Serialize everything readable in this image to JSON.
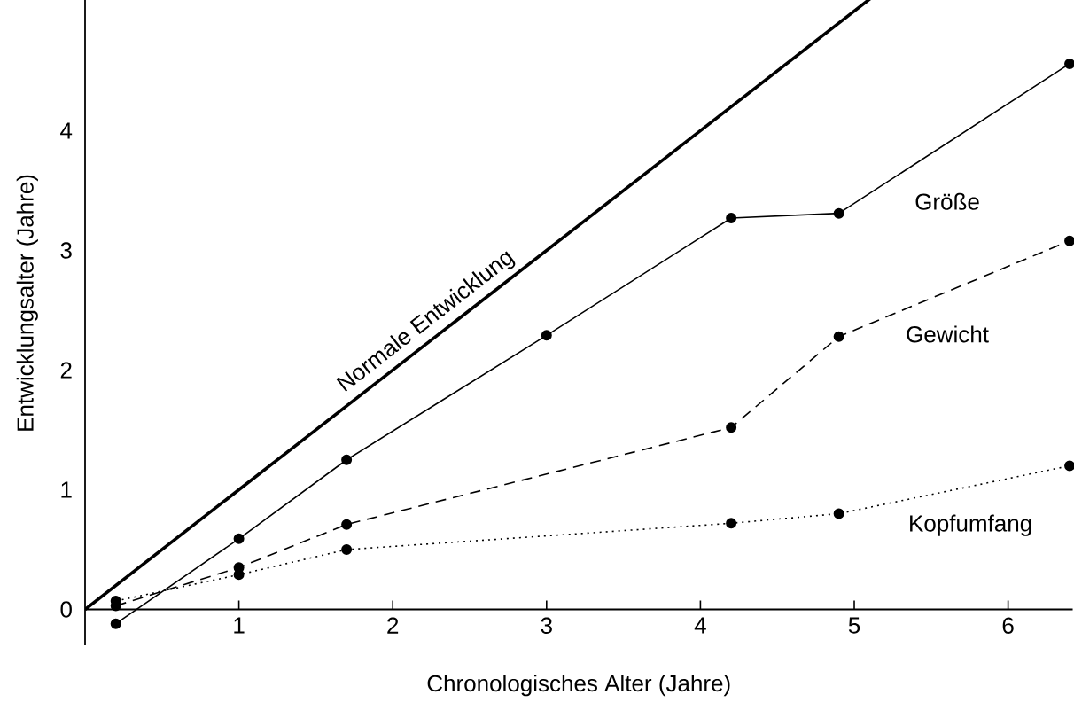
{
  "chart_data": {
    "type": "line",
    "xlabel": "Chronologisches Alter (Jahre)",
    "ylabel": "Entwicklungsalter (Jahre)",
    "xlim": [
      0,
      6.42
    ],
    "ylim": [
      -0.3,
      5.2
    ],
    "xticks": [
      1,
      2,
      3,
      4,
      5,
      6
    ],
    "yticks": [
      0,
      1,
      2,
      3,
      4
    ],
    "grid": false,
    "legend": false,
    "series": [
      {
        "name": "Normale Entwicklung",
        "color": "#000000",
        "x": [
          0,
          5.2
        ],
        "values": [
          0,
          5.2
        ],
        "marker": "none",
        "line_style": "solid"
      },
      {
        "name": "Größe",
        "color": "#000000",
        "x": [
          0.2,
          1,
          1.7,
          3,
          4.2,
          4.9,
          6.4
        ],
        "values": [
          -0.12,
          0.59,
          1.25,
          2.29,
          3.27,
          3.31,
          4.56
        ],
        "marker": "circle",
        "line_style": "solid"
      },
      {
        "name": "Gewicht",
        "color": "#000000",
        "x": [
          0.2,
          1,
          1.7,
          4.2,
          4.9,
          6.4
        ],
        "values": [
          0.03,
          0.35,
          0.71,
          1.52,
          2.28,
          3.08
        ],
        "marker": "circle",
        "line_style": "dashed"
      },
      {
        "name": "Kopfumfang",
        "color": "#000000",
        "x": [
          0.2,
          1,
          1.7,
          4.2,
          4.9,
          6.4
        ],
        "values": [
          0.07,
          0.29,
          0.5,
          0.72,
          0.8,
          1.2
        ],
        "marker": "circle",
        "line_style": "dotted"
      }
    ]
  }
}
